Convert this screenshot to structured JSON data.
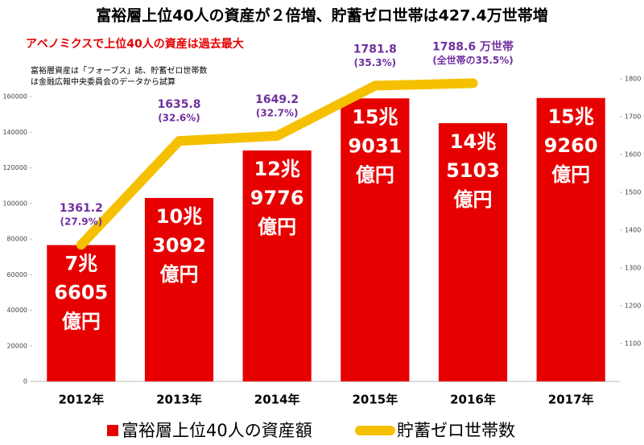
{
  "chart_data": {
    "type": "bar_line",
    "title": "富裕層上位40人の資産が２倍増、貯蓄ゼロ世帯は427.4万世帯増",
    "subtitle": "アベノミクスで上位40人の資産は過去最大",
    "note": [
      "富裕層資産は「フォーブス」誌、貯蓄ゼロ世帯数",
      "は金融広報中央委員会のデータから試算"
    ],
    "categories": [
      "2012年",
      "2013年",
      "2014年",
      "2015年",
      "2016年",
      "2017年"
    ],
    "series": [
      {
        "name": "富裕層上位40人の資産額",
        "color": "#e60000",
        "type": "bar",
        "values": [
          76605,
          103092,
          129776,
          159031,
          145103,
          159260
        ],
        "value_labels": [
          [
            "7兆",
            "6605",
            "億円"
          ],
          [
            "10兆",
            "3092",
            "億円"
          ],
          [
            "12兆",
            "9776",
            "億円"
          ],
          [
            "15兆",
            "9031",
            "億円"
          ],
          [
            "14兆",
            "5103",
            "億円"
          ],
          [
            "15兆",
            "9260",
            "億円"
          ]
        ]
      },
      {
        "name": "貯蓄ゼロ世帯数",
        "color": "#f5c000",
        "type": "line",
        "axis": "y2",
        "values": [
          1361.2,
          1635.8,
          1649.2,
          1781.8,
          1788.6,
          null
        ],
        "value_labels": [
          [
            "1361.2",
            "(27.9%)"
          ],
          [
            "1635.8",
            "(32.6%)"
          ],
          [
            "1649.2",
            "(32.7%)"
          ],
          [
            "1781.8",
            "(35.3%)"
          ],
          [
            "1788.6 万世帯",
            "(全世帯の35.5%)"
          ],
          null
        ]
      }
    ],
    "ylim": [
      0,
      170000
    ],
    "yticks": [
      0,
      20000,
      40000,
      60000,
      80000,
      100000,
      120000,
      140000,
      160000
    ],
    "y2lim": [
      1000,
      1800
    ],
    "y2ticks": [
      1100,
      1200,
      1300,
      1400,
      1500,
      1600,
      1700,
      1800
    ],
    "grid": false
  }
}
